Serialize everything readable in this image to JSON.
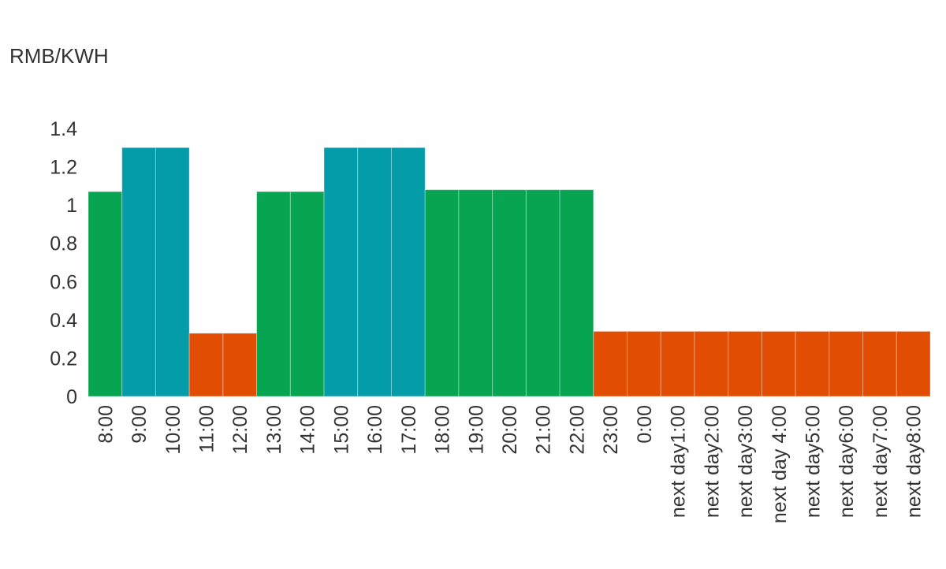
{
  "chart_data": {
    "type": "bar",
    "title": "",
    "ylabel": "RMB/KWH",
    "xlabel": "",
    "ylim": [
      0,
      1.4
    ],
    "yticks": [
      "0",
      "0.2",
      "0.4",
      "0.6",
      "0.8",
      "1",
      "1.2",
      "1.4"
    ],
    "grid": false,
    "legend": "none",
    "categories": [
      "8:00",
      "9:00",
      "10:00",
      "11:00",
      "12:00",
      "13:00",
      "14:00",
      "15:00",
      "16:00",
      "17:00",
      "18:00",
      "19:00",
      "20:00",
      "21:00",
      "22:00",
      "23:00",
      "0:00",
      "next day1:00",
      "next day2:00",
      "next day3:00",
      "next day 4:00",
      "next day5:00",
      "next day6:00",
      "next day7:00",
      "next day8:00"
    ],
    "values": [
      1.07,
      1.3,
      1.3,
      0.33,
      0.33,
      1.07,
      1.07,
      1.3,
      1.3,
      1.3,
      1.08,
      1.08,
      1.08,
      1.08,
      1.08,
      0.34,
      0.34,
      0.34,
      0.34,
      0.34,
      0.34,
      0.34,
      0.34,
      0.34,
      0.34
    ],
    "bar_colors": [
      "#07a551",
      "#039ca8",
      "#039ca8",
      "#e24d04",
      "#e24d04",
      "#07a551",
      "#07a551",
      "#039ca8",
      "#039ca8",
      "#039ca8",
      "#07a551",
      "#07a551",
      "#07a551",
      "#07a551",
      "#07a551",
      "#e24d04",
      "#e24d04",
      "#e24d04",
      "#e24d04",
      "#e24d04",
      "#e24d04",
      "#e24d04",
      "#e24d04",
      "#e24d04",
      "#e24d04"
    ]
  }
}
